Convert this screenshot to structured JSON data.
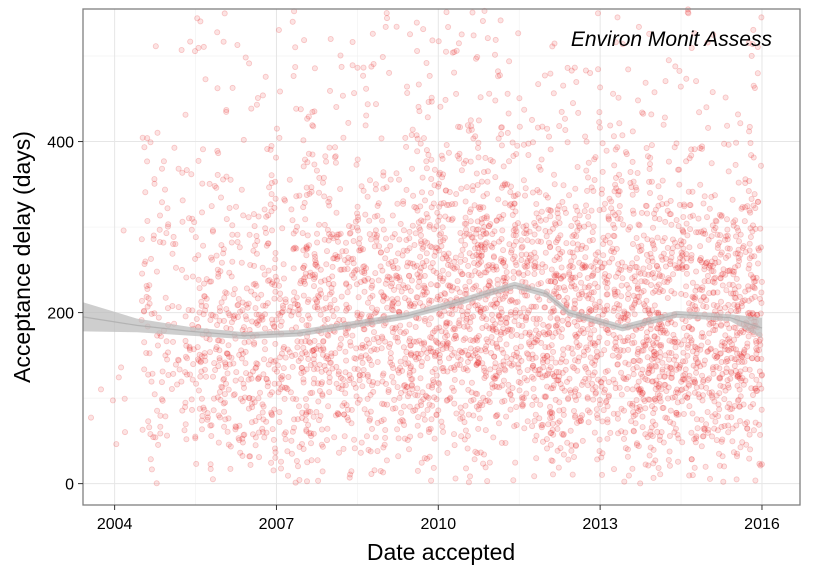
{
  "chart_data": {
    "type": "scatter",
    "annotation": "Environ Monit Assess",
    "xlabel": "Date accepted",
    "ylabel": "Acceptance delay (days)",
    "x_ticks": [
      "2004",
      "2007",
      "2010",
      "2013",
      "2016"
    ],
    "y_ticks": [
      "0",
      "200",
      "400"
    ],
    "xlim": [
      "2003-06-01",
      "2016-09-15"
    ],
    "ylim": [
      -25,
      555
    ],
    "grid": true,
    "point_color": "#e41a1c",
    "smooth_color": "#bdbdbd",
    "density": [
      {
        "from": "2003-07-01",
        "to": "2004-07-01",
        "center": 100,
        "spread": 60,
        "rel_density": 0.02
      },
      {
        "from": "2004-07-01",
        "to": "2005-07-01",
        "center": 180,
        "spread": 95,
        "rel_density": 0.35
      },
      {
        "from": "2005-07-01",
        "to": "2007-07-01",
        "center": 170,
        "spread": 90,
        "rel_density": 0.6
      },
      {
        "from": "2007-07-01",
        "to": "2009-07-01",
        "center": 185,
        "spread": 95,
        "rel_density": 0.8
      },
      {
        "from": "2009-07-01",
        "to": "2011-07-01",
        "center": 210,
        "spread": 100,
        "rel_density": 1.0
      },
      {
        "from": "2011-07-01",
        "to": "2013-07-01",
        "center": 190,
        "spread": 95,
        "rel_density": 0.9
      },
      {
        "from": "2013-07-01",
        "to": "2016-01-01",
        "center": 185,
        "spread": 95,
        "rel_density": 1.0
      }
    ],
    "smooth": [
      {
        "x": "2003-06-01",
        "y": 195,
        "lower": 178,
        "upper": 212
      },
      {
        "x": "2004-06-01",
        "y": 185,
        "lower": 177,
        "upper": 193
      },
      {
        "x": "2005-06-01",
        "y": 178,
        "lower": 173,
        "upper": 183
      },
      {
        "x": "2006-06-01",
        "y": 173,
        "lower": 169,
        "upper": 177
      },
      {
        "x": "2007-06-01",
        "y": 176,
        "lower": 172,
        "upper": 180
      },
      {
        "x": "2008-06-01",
        "y": 186,
        "lower": 182,
        "upper": 190
      },
      {
        "x": "2009-06-01",
        "y": 196,
        "lower": 192,
        "upper": 200
      },
      {
        "x": "2010-06-01",
        "y": 213,
        "lower": 209,
        "upper": 217
      },
      {
        "x": "2011-06-01",
        "y": 232,
        "lower": 228,
        "upper": 236
      },
      {
        "x": "2012-01-01",
        "y": 222,
        "lower": 218,
        "upper": 226
      },
      {
        "x": "2012-06-01",
        "y": 200,
        "lower": 196,
        "upper": 204
      },
      {
        "x": "2013-06-01",
        "y": 182,
        "lower": 178,
        "upper": 186
      },
      {
        "x": "2014-06-01",
        "y": 198,
        "lower": 194,
        "upper": 202
      },
      {
        "x": "2015-06-01",
        "y": 194,
        "lower": 190,
        "upper": 198
      },
      {
        "x": "2016-01-01",
        "y": 182,
        "lower": 170,
        "upper": 194
      }
    ]
  }
}
